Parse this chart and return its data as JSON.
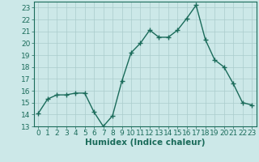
{
  "x": [
    0,
    1,
    2,
    3,
    4,
    5,
    6,
    7,
    8,
    9,
    10,
    11,
    12,
    13,
    14,
    15,
    16,
    17,
    18,
    19,
    20,
    21,
    22,
    23
  ],
  "y": [
    14.1,
    15.3,
    15.65,
    15.65,
    15.8,
    15.8,
    14.2,
    13.0,
    13.9,
    16.8,
    19.2,
    20.0,
    21.1,
    20.5,
    20.5,
    21.1,
    22.1,
    23.2,
    20.3,
    18.6,
    18.0,
    16.6,
    15.0,
    14.8
  ],
  "line_color": "#1a6b5a",
  "marker": "+",
  "marker_size": 4,
  "bg_color": "#cce8e8",
  "grid_color": "#aacccc",
  "xlabel": "Humidex (Indice chaleur)",
  "ylim": [
    13,
    23.5
  ],
  "xlim": [
    -0.5,
    23.5
  ],
  "yticks": [
    13,
    14,
    15,
    16,
    17,
    18,
    19,
    20,
    21,
    22,
    23
  ],
  "xticks": [
    0,
    1,
    2,
    3,
    4,
    5,
    6,
    7,
    8,
    9,
    10,
    11,
    12,
    13,
    14,
    15,
    16,
    17,
    18,
    19,
    20,
    21,
    22,
    23
  ],
  "tick_fontsize": 6.5,
  "label_fontsize": 7.5,
  "line_width": 1.0
}
